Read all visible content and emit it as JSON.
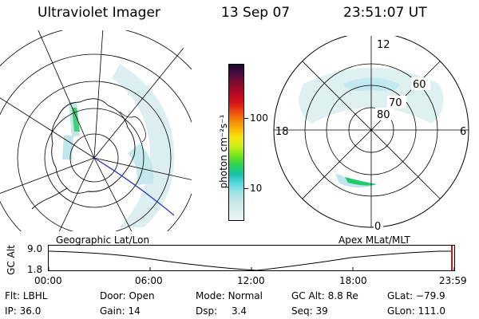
{
  "header": {
    "instrument": "Ultraviolet Imager",
    "date": "13 Sep 07",
    "time": "23:51:07 UT"
  },
  "geographic_panel": {
    "label": "Geographic Lat/Lon"
  },
  "apex_panel": {
    "label": "Apex MLat/MLT",
    "lat_labels": [
      "80",
      "70",
      "60"
    ],
    "mlt_labels": {
      "top": "12",
      "right": "6",
      "bottom": "0",
      "left": "18"
    }
  },
  "colorbar": {
    "label": "photon cm⁻²s⁻¹",
    "ticks": [
      "100",
      "10"
    ],
    "tick_values": [
      100,
      10
    ],
    "colors": [
      "#e8f4f4",
      "#d9efef",
      "#c9e6e6",
      "#99e4e6",
      "#55d6e0",
      "#19c1b0",
      "#23d35a",
      "#6fe21c",
      "#c7ef16",
      "#f5e50e",
      "#f7b306",
      "#f37b0a",
      "#e83c14",
      "#d40f1c",
      "#b10a23",
      "#830b2e",
      "#4c0b40",
      "#1a0a2e"
    ]
  },
  "altitude_strip": {
    "ylabel": "GC Alt",
    "y_ticks": [
      "9.0",
      "1.8"
    ],
    "x_ticks": [
      "00:00",
      "06:00",
      "12:00",
      "18:00",
      "23:59"
    ]
  },
  "status": {
    "filter": {
      "label": "Flt:",
      "value": "LBHL"
    },
    "ip": {
      "label": "IP:",
      "value": "36.0"
    },
    "door": {
      "label": "Door:",
      "value": "Open"
    },
    "gain": {
      "label": "Gain:",
      "value": "14"
    },
    "mode": {
      "label": "Mode:",
      "value": "Normal"
    },
    "dsp": {
      "label": "Dsp:",
      "value": "3.4"
    },
    "gc_alt": {
      "label": "GC Alt:",
      "value": "8.8 Re"
    },
    "seq": {
      "label": "Seq:",
      "value": "39"
    },
    "glat": {
      "label": "GLat:",
      "value": "−79.9"
    },
    "glon": {
      "label": "GLon:",
      "value": "111.0"
    }
  }
}
